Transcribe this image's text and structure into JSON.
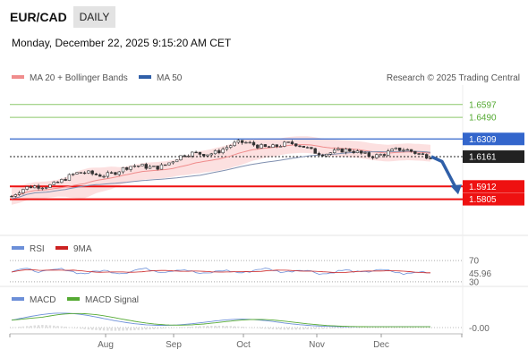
{
  "header": {
    "symbol": "EUR/CAD",
    "period": "DAILY",
    "datetime": "Monday, December 22, 2025 9:15:20 AM CET"
  },
  "legend": {
    "ma20_bb": "MA 20 + Bollinger Bands",
    "ma50": "MA 50",
    "credit": "Research © 2025 Trading Central"
  },
  "rsi_legend": {
    "rsi": "RSI",
    "ma9": "9MA"
  },
  "macd_legend": {
    "macd": "MACD",
    "signal": "MACD Signal"
  },
  "colors": {
    "green": "#8cc76a",
    "blue": "#3366cc",
    "red": "#ee1111",
    "current": "#222222",
    "bb_fill": "#fbd6d6",
    "ma20": "#f08c8c",
    "ma50": "#8090b0",
    "arrow": "#2f5fa8",
    "rsi": "#6c8fd8",
    "rsi_ma": "#cc2222",
    "macd": "#6c8fd8",
    "signal": "#55aa33"
  },
  "chart_data": [
    {
      "type": "candlestick",
      "title": "EUR/CAD",
      "x_ticks": [
        "Aug",
        "Sep",
        "Oct",
        "Nov",
        "Dec"
      ],
      "levels": [
        {
          "value": "1.6597",
          "kind": "resistance-2",
          "color": "green"
        },
        {
          "value": "1.6490",
          "kind": "resistance-1",
          "color": "green"
        },
        {
          "value": "1.6309",
          "kind": "pivot",
          "color": "blue"
        },
        {
          "value": "1.6161",
          "kind": "current-price",
          "color": "current"
        },
        {
          "value": "1.5912",
          "kind": "target-1",
          "color": "red"
        },
        {
          "value": "1.5805",
          "kind": "target-2",
          "color": "red"
        }
      ],
      "ylim": [
        1.551,
        1.676
      ],
      "trend_start": 1.583,
      "trend_peak": 1.625,
      "trend_end": 1.616,
      "projection": [
        1.6161,
        1.612,
        1.586
      ]
    },
    {
      "type": "line",
      "indicator": "RSI",
      "ticks": [
        "70",
        "30"
      ],
      "last_value": "45.96",
      "ylim": [
        28,
        72
      ]
    },
    {
      "type": "line",
      "indicator": "MACD",
      "last_value": "-0.00"
    }
  ]
}
